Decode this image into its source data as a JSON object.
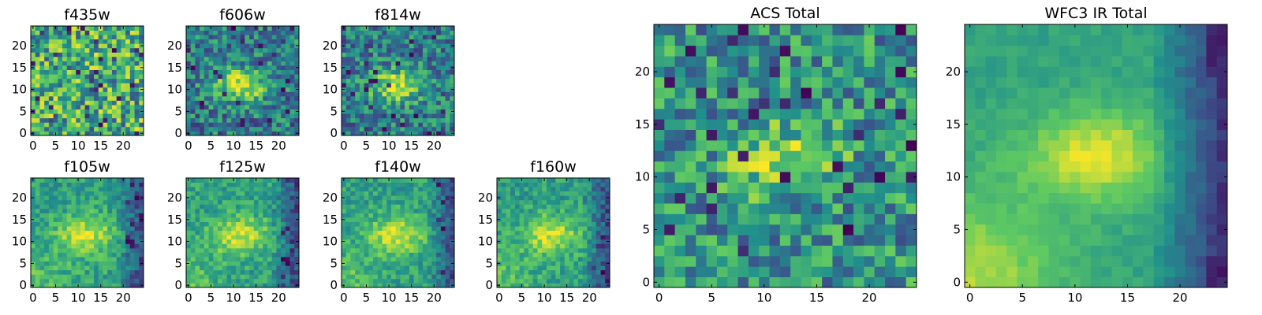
{
  "chart_data": [
    {
      "type": "heatmap",
      "title": "f435w",
      "grid_size": 25,
      "xlim": [
        0,
        24
      ],
      "ylim": [
        0,
        24
      ],
      "xticks": [
        "0",
        "5",
        "10",
        "15",
        "20"
      ],
      "yticks": [
        "0",
        "5",
        "10",
        "15",
        "20"
      ],
      "colormap": "viridis",
      "colormap_stops": [
        "#440154",
        "#3b528b",
        "#21918c",
        "#5ec962",
        "#fde725"
      ],
      "pattern": "noise"
    },
    {
      "type": "heatmap",
      "title": "f606w",
      "grid_size": 25,
      "xlim": [
        0,
        24
      ],
      "ylim": [
        0,
        24
      ],
      "xticks": [
        "0",
        "5",
        "10",
        "15",
        "20"
      ],
      "yticks": [
        "0",
        "5",
        "10",
        "15",
        "20"
      ],
      "colormap": "viridis",
      "colormap_stops": [
        "#440154",
        "#3b528b",
        "#21918c",
        "#5ec962",
        "#fde725"
      ],
      "pattern": "central-source"
    },
    {
      "type": "heatmap",
      "title": "f814w",
      "grid_size": 25,
      "xlim": [
        0,
        24
      ],
      "ylim": [
        0,
        24
      ],
      "xticks": [
        "0",
        "5",
        "10",
        "15",
        "20"
      ],
      "yticks": [
        "0",
        "5",
        "10",
        "15",
        "20"
      ],
      "colormap": "viridis",
      "colormap_stops": [
        "#440154",
        "#3b528b",
        "#21918c",
        "#5ec962",
        "#fde725"
      ],
      "pattern": "central-source"
    },
    {
      "type": "heatmap",
      "title": "f105w",
      "grid_size": 25,
      "xlim": [
        0,
        24
      ],
      "ylim": [
        0,
        24
      ],
      "xticks": [
        "0",
        "5",
        "10",
        "15",
        "20"
      ],
      "yticks": [
        "0",
        "5",
        "10",
        "15",
        "20"
      ],
      "colormap": "viridis",
      "colormap_stops": [
        "#440154",
        "#3b528b",
        "#21918c",
        "#5ec962",
        "#fde725"
      ],
      "pattern": "ir-source"
    },
    {
      "type": "heatmap",
      "title": "f125w",
      "grid_size": 25,
      "xlim": [
        0,
        24
      ],
      "ylim": [
        0,
        24
      ],
      "xticks": [
        "0",
        "5",
        "10",
        "15",
        "20"
      ],
      "yticks": [
        "0",
        "5",
        "10",
        "15",
        "20"
      ],
      "colormap": "viridis",
      "colormap_stops": [
        "#440154",
        "#3b528b",
        "#21918c",
        "#5ec962",
        "#fde725"
      ],
      "pattern": "ir-source"
    },
    {
      "type": "heatmap",
      "title": "f140w",
      "grid_size": 25,
      "xlim": [
        0,
        24
      ],
      "ylim": [
        0,
        24
      ],
      "xticks": [
        "0",
        "5",
        "10",
        "15",
        "20"
      ],
      "yticks": [
        "0",
        "5",
        "10",
        "15",
        "20"
      ],
      "colormap": "viridis",
      "colormap_stops": [
        "#440154",
        "#3b528b",
        "#21918c",
        "#5ec962",
        "#fde725"
      ],
      "pattern": "ir-source"
    },
    {
      "type": "heatmap",
      "title": "f160w",
      "grid_size": 25,
      "xlim": [
        0,
        24
      ],
      "ylim": [
        0,
        24
      ],
      "xticks": [
        "0",
        "5",
        "10",
        "15",
        "20"
      ],
      "yticks": [
        "0",
        "5",
        "10",
        "15",
        "20"
      ],
      "colormap": "viridis",
      "colormap_stops": [
        "#440154",
        "#3b528b",
        "#21918c",
        "#5ec962",
        "#fde725"
      ],
      "pattern": "ir-source"
    },
    {
      "type": "heatmap",
      "title": "ACS Total",
      "grid_size": 25,
      "xlim": [
        0,
        24
      ],
      "ylim": [
        0,
        24
      ],
      "xticks": [
        "0",
        "5",
        "10",
        "15",
        "20"
      ],
      "yticks": [
        "0",
        "5",
        "10",
        "15",
        "20"
      ],
      "colormap": "viridis",
      "colormap_stops": [
        "#440154",
        "#3b528b",
        "#21918c",
        "#5ec962",
        "#fde725"
      ],
      "pattern": "acs-total"
    },
    {
      "type": "heatmap",
      "title": "WFC3 IR Total",
      "grid_size": 25,
      "xlim": [
        0,
        24
      ],
      "ylim": [
        0,
        24
      ],
      "xticks": [
        "0",
        "5",
        "10",
        "15",
        "20"
      ],
      "yticks": [
        "0",
        "5",
        "10",
        "15",
        "20"
      ],
      "colormap": "viridis",
      "colormap_stops": [
        "#440154",
        "#3b528b",
        "#21918c",
        "#5ec962",
        "#fde725"
      ],
      "pattern": "ir-total"
    }
  ]
}
